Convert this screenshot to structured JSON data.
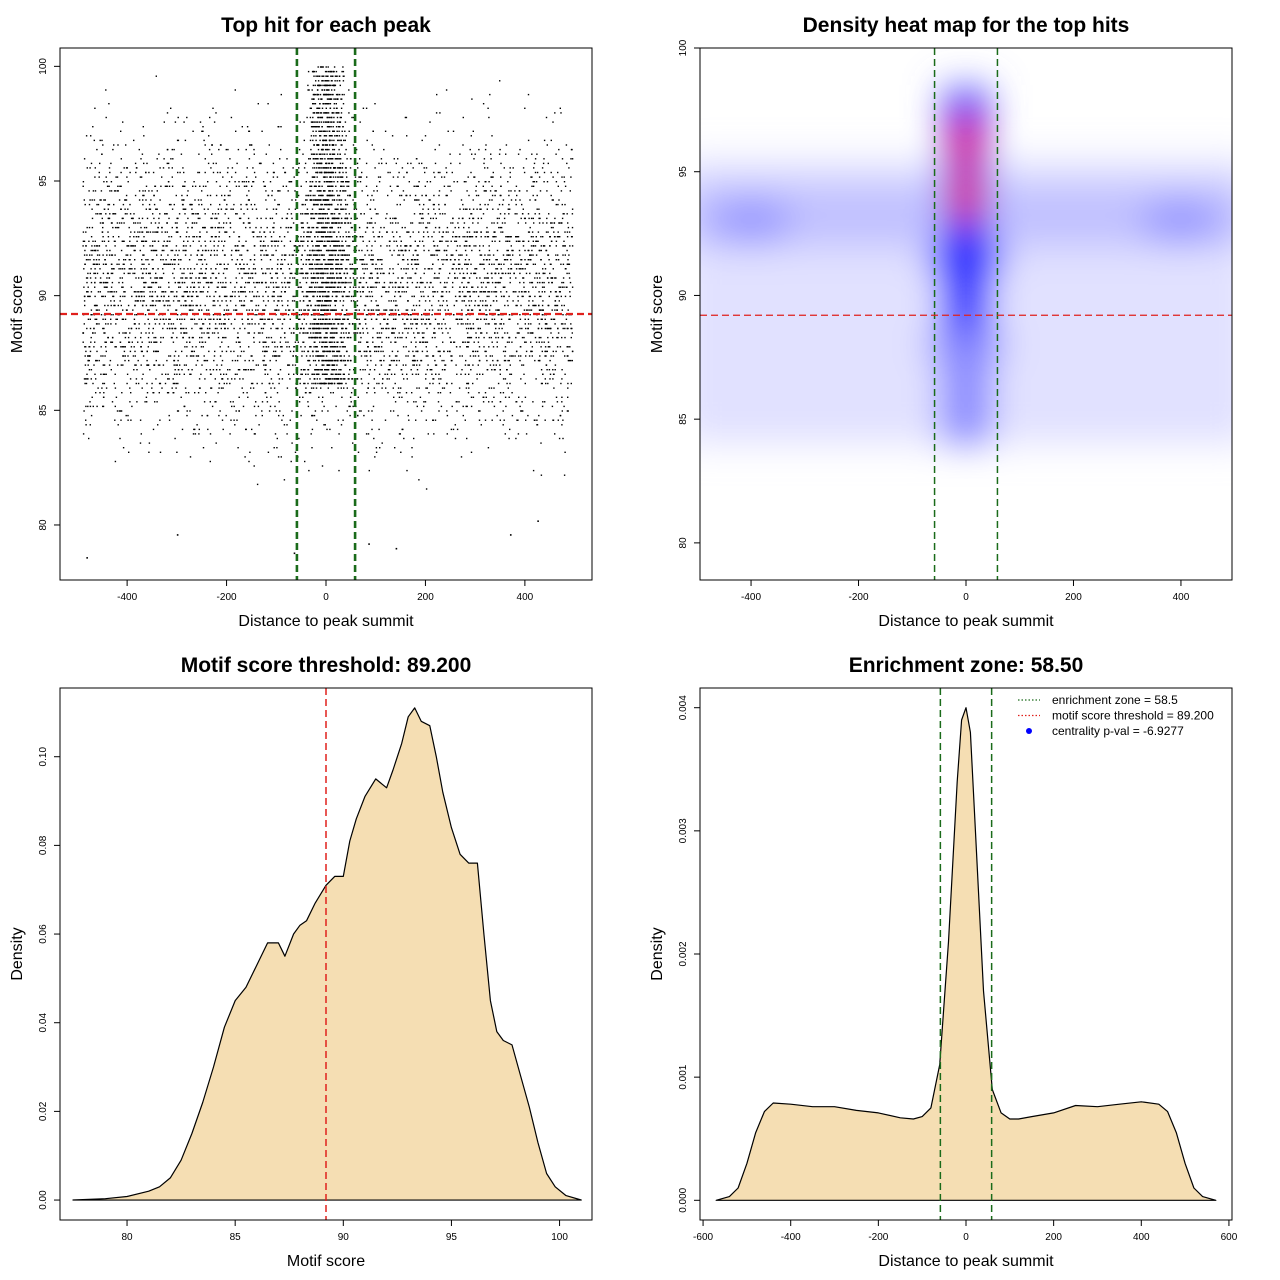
{
  "chart_data": [
    {
      "type": "scatter",
      "title": "Top hit for each peak",
      "xlabel": "Distance to peak summit",
      "ylabel": "Motif score",
      "xlim": [
        -535,
        535
      ],
      "ylim": [
        77.6,
        100.8
      ],
      "xticks": [
        "-400",
        "-200",
        "0",
        "200",
        "400"
      ],
      "xtick_values": [
        -400,
        -200,
        0,
        200,
        400
      ],
      "yticks": [
        "80",
        "85",
        "90",
        "95",
        "100"
      ],
      "ytick_values": [
        80,
        85,
        90,
        95,
        100
      ],
      "lines": [
        {
          "orientation": "vertical",
          "value": -58.5,
          "color": "#1a6b1a",
          "style": "dashed"
        },
        {
          "orientation": "vertical",
          "value": 58.5,
          "color": "#1a6b1a",
          "style": "dashed"
        },
        {
          "orientation": "horizontal",
          "value": 89.2,
          "color": "#e0201c",
          "style": "dashed"
        }
      ],
      "points_description_range": {
        "x": [
          -490,
          495
        ],
        "y": [
          78.5,
          100
        ]
      },
      "point_color": "#000000"
    },
    {
      "type": "heatmap",
      "title": "Density heat map for the top hits",
      "xlabel": "Distance to peak summit",
      "ylabel": "Motif score",
      "xlim": [
        -495,
        495
      ],
      "ylim": [
        78.5,
        100
      ],
      "xticks": [
        "-400",
        "-200",
        "0",
        "200",
        "400"
      ],
      "xtick_values": [
        -400,
        -200,
        0,
        200,
        400
      ],
      "yticks": [
        "80",
        "85",
        "90",
        "95",
        "100"
      ],
      "ytick_values": [
        80,
        85,
        90,
        95,
        100
      ],
      "colors": [
        "#ffffff",
        "#0000ff",
        "#ff0000"
      ],
      "hotspots": [
        {
          "x": 0,
          "y": 94,
          "level": "high"
        },
        {
          "x": 0,
          "y": 96.2,
          "level": "high"
        },
        {
          "x": 0,
          "y": 91.5,
          "level": "medium"
        },
        {
          "x": 0,
          "y": 88,
          "level": "low"
        },
        {
          "x": -400,
          "y": 93,
          "level": "low"
        },
        {
          "x": 400,
          "y": 93,
          "level": "low"
        }
      ],
      "lines": [
        {
          "orientation": "vertical",
          "value": -58.5,
          "color": "#1a6b1a",
          "style": "dashed"
        },
        {
          "orientation": "vertical",
          "value": 58.5,
          "color": "#1a6b1a",
          "style": "dashed"
        },
        {
          "orientation": "horizontal",
          "value": 89.2,
          "color": "#e0201c",
          "style": "dashed"
        }
      ]
    },
    {
      "type": "area",
      "title": "Motif score threshold: 89.200",
      "xlabel": "Motif score",
      "ylabel": "Density",
      "xlim": [
        76.9,
        101.5
      ],
      "ylim": [
        -0.0045,
        0.1155
      ],
      "xticks": [
        "80",
        "85",
        "90",
        "95",
        "100"
      ],
      "xtick_values": [
        80,
        85,
        90,
        95,
        100
      ],
      "yticks": [
        "0.00",
        "0.02",
        "0.04",
        "0.06",
        "0.08",
        "0.10"
      ],
      "ytick_values": [
        0,
        0.02,
        0.04,
        0.06,
        0.08,
        0.1
      ],
      "fill": "#f5deb3",
      "series": [
        {
          "x": [
            77.5,
            79,
            80,
            81,
            81.5,
            82,
            82.5,
            83,
            83.5,
            84,
            84.5,
            85,
            85.5,
            86,
            86.5,
            87,
            87.3,
            87.7,
            88,
            88.3,
            88.7,
            89.2,
            89.6,
            90,
            90.3,
            90.6,
            91,
            91.5,
            92,
            92.3,
            92.7,
            93,
            93.3,
            93.6,
            94,
            94.3,
            94.6,
            95,
            95.4,
            95.8,
            96.2,
            96.5,
            96.8,
            97.1,
            97.4,
            97.8,
            98.2,
            98.6,
            99,
            99.4,
            99.8,
            100.3,
            101
          ],
          "y": [
            0,
            0.0003,
            0.0008,
            0.002,
            0.003,
            0.005,
            0.009,
            0.015,
            0.022,
            0.03,
            0.039,
            0.045,
            0.048,
            0.053,
            0.058,
            0.058,
            0.055,
            0.06,
            0.062,
            0.063,
            0.067,
            0.071,
            0.073,
            0.073,
            0.081,
            0.086,
            0.091,
            0.095,
            0.093,
            0.097,
            0.103,
            0.109,
            0.111,
            0.108,
            0.107,
            0.1,
            0.092,
            0.084,
            0.078,
            0.076,
            0.076,
            0.06,
            0.045,
            0.038,
            0.036,
            0.035,
            0.028,
            0.021,
            0.013,
            0.006,
            0.003,
            0.001,
            0
          ]
        }
      ],
      "lines": [
        {
          "orientation": "vertical",
          "value": 89.2,
          "color": "#e0201c",
          "style": "dashed"
        }
      ]
    },
    {
      "type": "area",
      "title": "Enrichment zone: 58.50",
      "xlabel": "Distance to peak summit",
      "ylabel": "Density",
      "xlim": [
        -607,
        607
      ],
      "ylim": [
        -0.00016,
        0.00416
      ],
      "xticks": [
        "-600",
        "-400",
        "-200",
        "0",
        "200",
        "400",
        "600"
      ],
      "xtick_values": [
        -600,
        -400,
        -200,
        0,
        200,
        400,
        600
      ],
      "yticks": [
        "0.000",
        "0.001",
        "0.002",
        "0.003",
        "0.004"
      ],
      "ytick_values": [
        0,
        0.001,
        0.002,
        0.003,
        0.004
      ],
      "fill": "#f5deb3",
      "series": [
        {
          "x": [
            -570,
            -540,
            -520,
            -500,
            -480,
            -460,
            -440,
            -400,
            -350,
            -300,
            -250,
            -200,
            -150,
            -120,
            -100,
            -80,
            -60,
            -40,
            -20,
            -10,
            0,
            10,
            20,
            40,
            60,
            80,
            100,
            120,
            150,
            200,
            250,
            300,
            350,
            400,
            440,
            460,
            480,
            500,
            520,
            540,
            570
          ],
          "y": [
            0,
            3e-05,
            0.0001,
            0.0003,
            0.00055,
            0.00072,
            0.00079,
            0.00078,
            0.00076,
            0.00076,
            0.00073,
            0.00071,
            0.00067,
            0.00066,
            0.00068,
            0.00075,
            0.0011,
            0.0021,
            0.0034,
            0.0039,
            0.004,
            0.0038,
            0.0031,
            0.0017,
            0.0009,
            0.00071,
            0.00066,
            0.00066,
            0.00068,
            0.00071,
            0.00077,
            0.00076,
            0.00078,
            0.0008,
            0.00078,
            0.00072,
            0.00055,
            0.0003,
            0.0001,
            3e-05,
            0
          ]
        }
      ],
      "lines": [
        {
          "orientation": "vertical",
          "value": -58.5,
          "color": "#1a6b1a",
          "style": "dashed"
        },
        {
          "orientation": "vertical",
          "value": 58.5,
          "color": "#1a6b1a",
          "style": "dashed"
        }
      ],
      "legend": {
        "position": "top-right",
        "entries": [
          {
            "label": "enrichment zone = 58.5",
            "color": "#1a6b1a",
            "symbol": "dotted-line"
          },
          {
            "label": "motif score threshold = 89.200",
            "color": "#e0201c",
            "symbol": "dotted-line"
          },
          {
            "label": "centrality p-val = -6.9277",
            "color": "#0000ff",
            "symbol": "dot"
          }
        ]
      }
    }
  ]
}
